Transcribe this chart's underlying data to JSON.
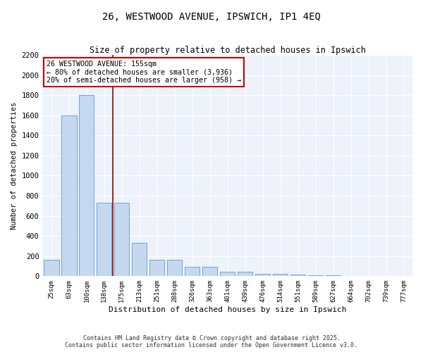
{
  "title_line1": "26, WESTWOOD AVENUE, IPSWICH, IP1 4EQ",
  "title_line2": "Size of property relative to detached houses in Ipswich",
  "xlabel": "Distribution of detached houses by size in Ipswich",
  "ylabel": "Number of detached properties",
  "categories": [
    "25sqm",
    "63sqm",
    "100sqm",
    "138sqm",
    "175sqm",
    "213sqm",
    "251sqm",
    "288sqm",
    "326sqm",
    "363sqm",
    "401sqm",
    "439sqm",
    "476sqm",
    "514sqm",
    "551sqm",
    "589sqm",
    "627sqm",
    "664sqm",
    "702sqm",
    "739sqm",
    "777sqm"
  ],
  "values": [
    160,
    1600,
    1800,
    730,
    730,
    330,
    160,
    160,
    90,
    90,
    45,
    45,
    25,
    20,
    15,
    10,
    8,
    5,
    3,
    2,
    2
  ],
  "bar_color": "#c5d8f0",
  "bar_edge_color": "#5b9bd5",
  "red_line_x": 3.5,
  "red_line_color": "#9b0000",
  "annotation_text": "26 WESTWOOD AVENUE: 155sqm\n← 80% of detached houses are smaller (3,936)\n20% of semi-detached houses are larger (958) →",
  "annotation_box_color": "#ffffff",
  "annotation_box_edge": "#cc0000",
  "ylim": [
    0,
    2200
  ],
  "yticks": [
    0,
    200,
    400,
    600,
    800,
    1000,
    1200,
    1400,
    1600,
    1800,
    2000,
    2200
  ],
  "background_color": "#eef2fb",
  "grid_color": "#ffffff",
  "fig_background": "#ffffff",
  "footer_line1": "Contains HM Land Registry data © Crown copyright and database right 2025.",
  "footer_line2": "Contains public sector information licensed under the Open Government Licence v3.0."
}
